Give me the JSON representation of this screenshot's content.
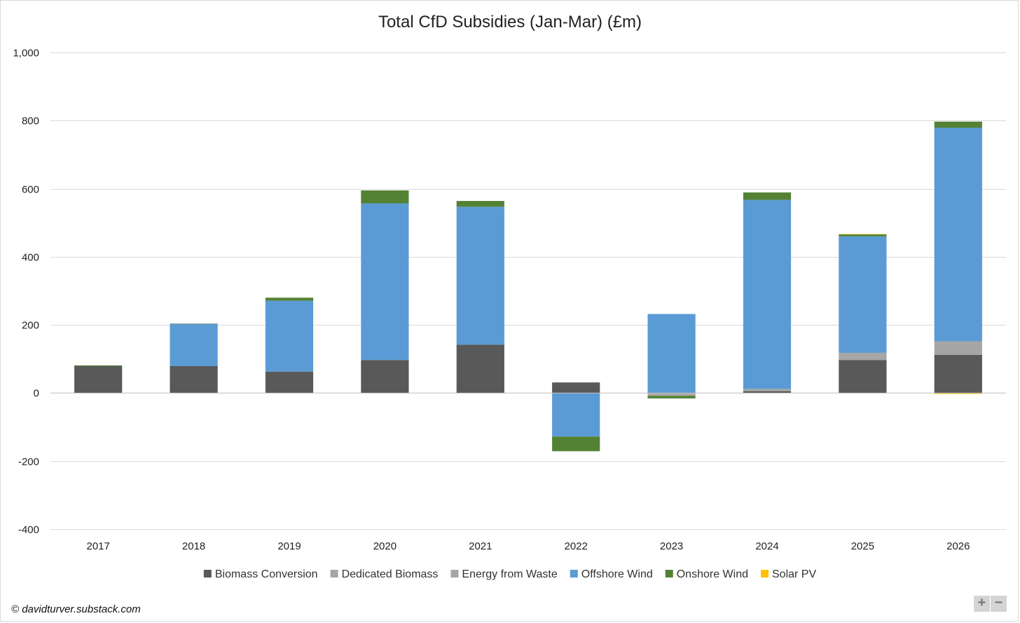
{
  "chart_data": {
    "type": "bar",
    "stacked": true,
    "title": "Total CfD Subsidies (Jan-Mar) (£m)",
    "xlabel": "",
    "ylabel": "",
    "ylim": [
      -400,
      1000
    ],
    "yticks": [
      -400,
      -200,
      0,
      200,
      400,
      600,
      800,
      1000
    ],
    "ytick_labels": [
      "-400",
      "-200",
      "0",
      "200",
      "400",
      "600",
      "800",
      "1,000"
    ],
    "grid": true,
    "legend_position": "bottom",
    "categories": [
      "2017",
      "2018",
      "2019",
      "2020",
      "2021",
      "2022",
      "2023",
      "2024",
      "2025",
      "2026"
    ],
    "series": [
      {
        "name": "Biomass Conversion",
        "color": "#595959",
        "values": [
          79,
          79,
          63,
          97,
          142,
          31,
          0,
          5,
          97,
          112
        ]
      },
      {
        "name": "Dedicated Biomass",
        "color": "#a6a6a6",
        "values": [
          0,
          0,
          0,
          0,
          0,
          0,
          -4,
          0,
          21,
          40
        ]
      },
      {
        "name": "Energy from Waste",
        "color": "#a6a6a6",
        "values": [
          0,
          0,
          0,
          0,
          0,
          0,
          -4,
          7,
          0,
          0
        ]
      },
      {
        "name": "Offshore Wind",
        "color": "#5b9bd5",
        "values": [
          0,
          124,
          208,
          460,
          405,
          -128,
          232,
          555,
          342,
          627
        ]
      },
      {
        "name": "Onshore Wind",
        "color": "#548235",
        "values": [
          2,
          1,
          9,
          38,
          17,
          -43,
          -8,
          22,
          6,
          18
        ]
      },
      {
        "name": "Solar PV",
        "color": "#ffc000",
        "values": [
          0,
          0,
          0,
          0,
          0,
          0,
          0,
          0,
          1,
          -3
        ]
      }
    ]
  },
  "credit": "© davidturver.substack.com",
  "zoom": {
    "plus": "+",
    "minus": "−"
  }
}
